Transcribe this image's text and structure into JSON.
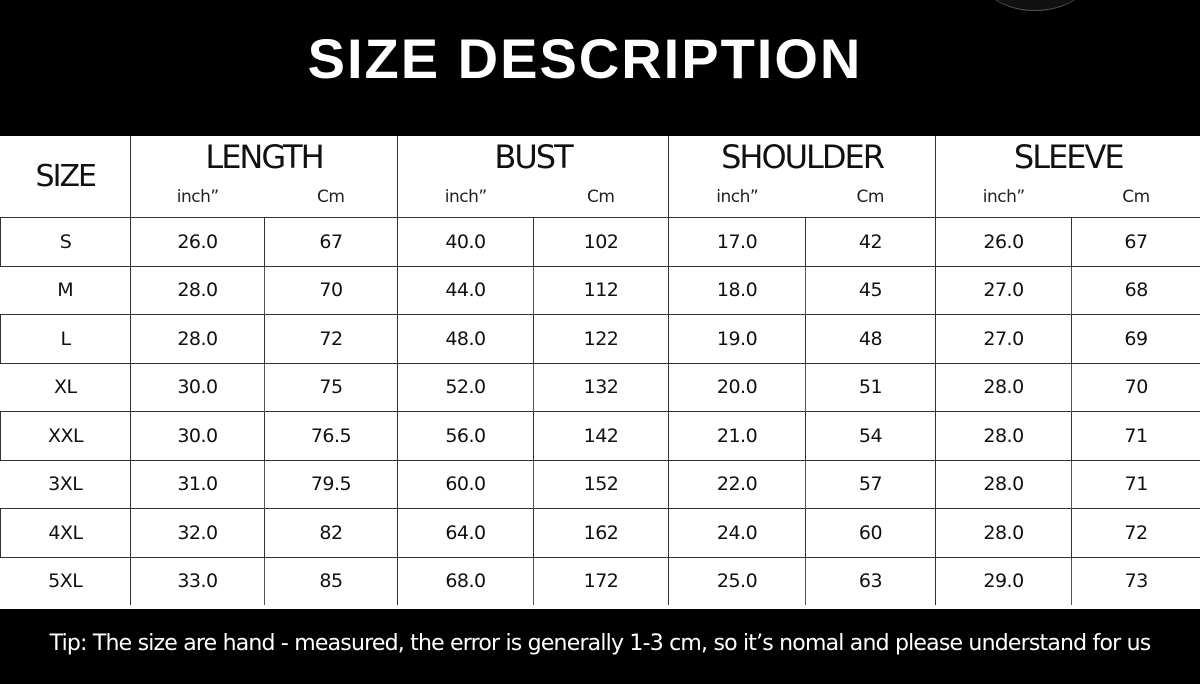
{
  "title": "SIZE DESCRIPTION",
  "headers": {
    "size": "SIZE",
    "groups": [
      "LENGTH",
      "BUST",
      "SHOULDER",
      "SLEEVE"
    ],
    "unit_inch": "inch”",
    "unit_cm": "Cm"
  },
  "rows": [
    [
      "S",
      "26.0",
      "67",
      "40.0",
      "102",
      "17.0",
      "42",
      "26.0",
      "67"
    ],
    [
      "M",
      "28.0",
      "70",
      "44.0",
      "112",
      "18.0",
      "45",
      "27.0",
      "68"
    ],
    [
      "L",
      "28.0",
      "72",
      "48.0",
      "122",
      "19.0",
      "48",
      "27.0",
      "69"
    ],
    [
      "XL",
      "30.0",
      "75",
      "52.0",
      "132",
      "20.0",
      "51",
      "28.0",
      "70"
    ],
    [
      "XXL",
      "30.0",
      "76.5",
      "56.0",
      "142",
      "21.0",
      "54",
      "28.0",
      "71"
    ],
    [
      "3XL",
      "31.0",
      "79.5",
      "60.0",
      "152",
      "22.0",
      "57",
      "28.0",
      "71"
    ],
    [
      "4XL",
      "32.0",
      "82",
      "64.0",
      "162",
      "24.0",
      "60",
      "28.0",
      "72"
    ],
    [
      "5XL",
      "33.0",
      "85",
      "68.0",
      "172",
      "25.0",
      "63",
      "29.0",
      "73"
    ]
  ],
  "tip": "Tip: The size are hand - measured, the error is generally 1-3 cm, so it’s nomal and please understand for us"
}
